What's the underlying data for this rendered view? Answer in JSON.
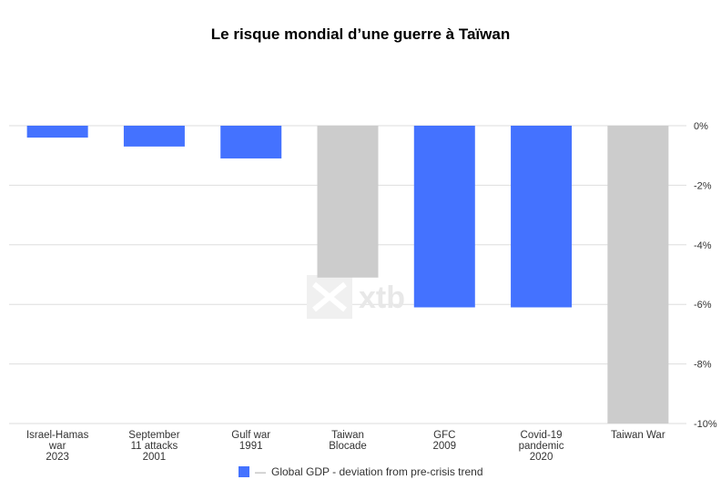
{
  "title": "Le risque mondial d’une guerre à Taïwan",
  "watermark": "xtb",
  "legend": {
    "label": "Global GDP - deviation from pre-crisis trend",
    "dash": "—",
    "color": "#4472ff"
  },
  "colors": {
    "primary": "#4472ff",
    "scenario": "#cccccc",
    "grid": "#dedede"
  },
  "chart_data": {
    "type": "bar",
    "categories": [
      [
        "Israel-Hamas",
        "war",
        "2023"
      ],
      [
        "September",
        "11 attacks",
        "2001"
      ],
      [
        "Gulf war",
        "1991"
      ],
      [
        "Taiwan",
        "Blocade"
      ],
      [
        "GFC",
        "2009"
      ],
      [
        "Covid-19",
        "pandemic",
        "2020"
      ],
      [
        "Taiwan War"
      ]
    ],
    "values": [
      -0.4,
      -0.7,
      -1.1,
      -5.1,
      -6.1,
      -6.1,
      -10.0
    ],
    "bar_kind": [
      "historical",
      "historical",
      "historical",
      "scenario",
      "historical",
      "historical",
      "scenario"
    ],
    "ylim": [
      -10,
      0
    ],
    "yticks": [
      0,
      -2,
      -4,
      -6,
      -8,
      -10
    ],
    "ytick_labels": [
      "0%",
      "-2%",
      "-4%",
      "-6%",
      "-8%",
      "-10%"
    ],
    "grid": true,
    "y_axis_position": "right",
    "legend_position": "bottom"
  }
}
